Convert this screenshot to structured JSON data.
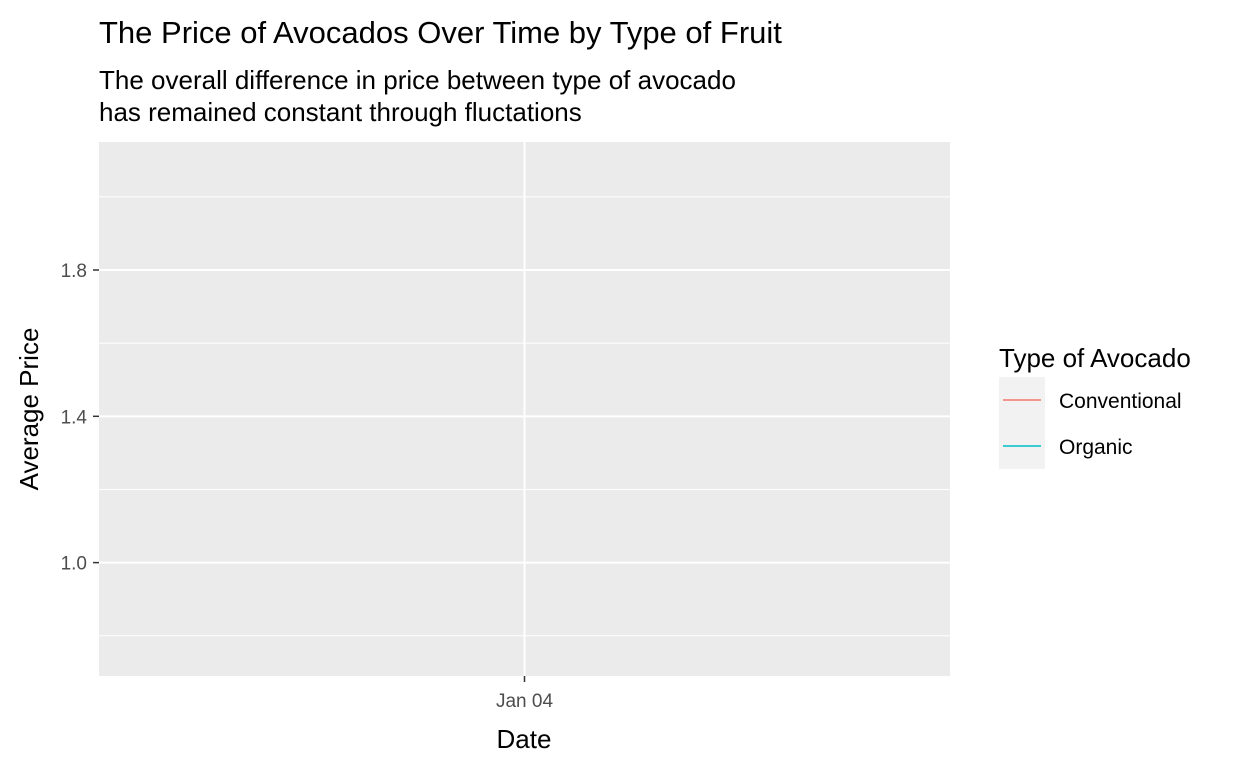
{
  "chart_data": {
    "type": "line",
    "title": "The Price of Avocados Over Time by Type of Fruit",
    "subtitle": [
      "The overall difference in price between type of avocado",
      "has remained constant through fluctations"
    ],
    "xlabel": "Date",
    "ylabel": "Average Price",
    "x_ticks": [
      "Jan 04"
    ],
    "y_ticks": [
      1.0,
      1.4,
      1.8
    ],
    "ylim": [
      0.69,
      2.15
    ],
    "grid": true,
    "legend": {
      "title": "Type of Avocado",
      "placement": "right",
      "entries": [
        {
          "label": "Conventional",
          "color": "#f8766d"
        },
        {
          "label": "Organic",
          "color": "#00bfc4"
        }
      ]
    },
    "series": [
      {
        "name": "Conventional",
        "color": "#f8766d",
        "points": []
      },
      {
        "name": "Organic",
        "color": "#00bfc4",
        "points": []
      }
    ],
    "panel_background": "#ebebeb",
    "grid_color": "#ffffff",
    "tick_color": "#333333"
  }
}
